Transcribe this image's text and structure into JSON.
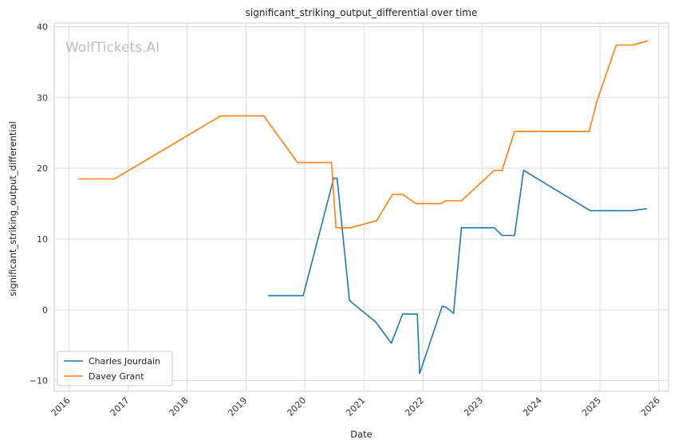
{
  "chart_data": {
    "type": "line",
    "title": "significant_striking_output_differential over time",
    "xlabel": "Date",
    "ylabel": "significant_striking_output_differential",
    "watermark": "WolfTickets.AI",
    "xlim": [
      "2015-10-01",
      "2026-03-01"
    ],
    "ylim": [
      -11.5,
      40.5
    ],
    "x_ticks": [
      "2016",
      "2017",
      "2018",
      "2019",
      "2020",
      "2021",
      "2022",
      "2023",
      "2024",
      "2025",
      "2026"
    ],
    "y_ticks": [
      -10,
      0,
      10,
      20,
      30,
      40
    ],
    "grid": true,
    "legend_position": "lower-left",
    "series": [
      {
        "name": "Charles Jourdain",
        "color": "#1f77b4",
        "x": [
          "2019-05-18",
          "2019-12-21",
          "2020-06-27",
          "2020-07-18",
          "2020-10-03",
          "2021-03-13",
          "2021-06-19",
          "2021-08-28",
          "2021-11-27",
          "2021-12-11",
          "2022-04-30",
          "2022-05-21",
          "2022-07-09",
          "2022-08-27",
          "2023-03-18",
          "2023-05-06",
          "2023-07-22",
          "2023-09-16",
          "2024-11-02",
          "2025-07-19",
          "2025-10-18"
        ],
        "y": [
          2,
          2,
          18.6,
          18.6,
          1.3,
          -1.7,
          -4.7,
          -0.6,
          -0.6,
          -9,
          0.5,
          0.4,
          -0.5,
          11.6,
          11.6,
          10.5,
          10.5,
          19.7,
          14,
          14,
          14.3
        ]
      },
      {
        "name": "Davey Grant",
        "color": "#ff7f0e",
        "x": [
          "2016-02-27",
          "2016-10-08",
          "2018-07-28",
          "2019-04-20",
          "2019-11-16",
          "2020-06-13",
          "2020-07-11",
          "2020-10-10",
          "2021-03-20",
          "2021-06-26",
          "2021-08-28",
          "2021-11-20",
          "2022-04-23",
          "2022-05-21",
          "2022-08-27",
          "2023-03-18",
          "2023-05-06",
          "2023-07-22",
          "2024-10-26",
          "2024-12-14",
          "2025-04-12",
          "2025-07-26",
          "2025-10-25"
        ],
        "y": [
          18.5,
          18.5,
          27.4,
          27.4,
          20.8,
          20.8,
          11.6,
          11.6,
          12.6,
          16.3,
          16.3,
          15,
          15,
          15.4,
          15.4,
          19.7,
          19.7,
          25.2,
          25.2,
          29.5,
          37.4,
          37.4,
          38
        ]
      }
    ]
  }
}
